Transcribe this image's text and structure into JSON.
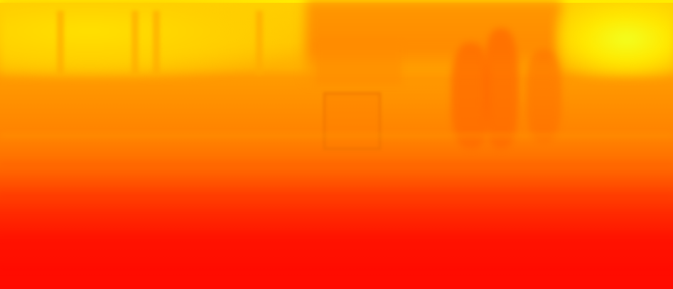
{
  "image": {
    "description_colors": {
      "top_bright": "#ffd000",
      "top_right_highlight": "#f2ff20",
      "mid_orange": "#ff8e00",
      "bottom_red": "#ff0a00"
    }
  }
}
